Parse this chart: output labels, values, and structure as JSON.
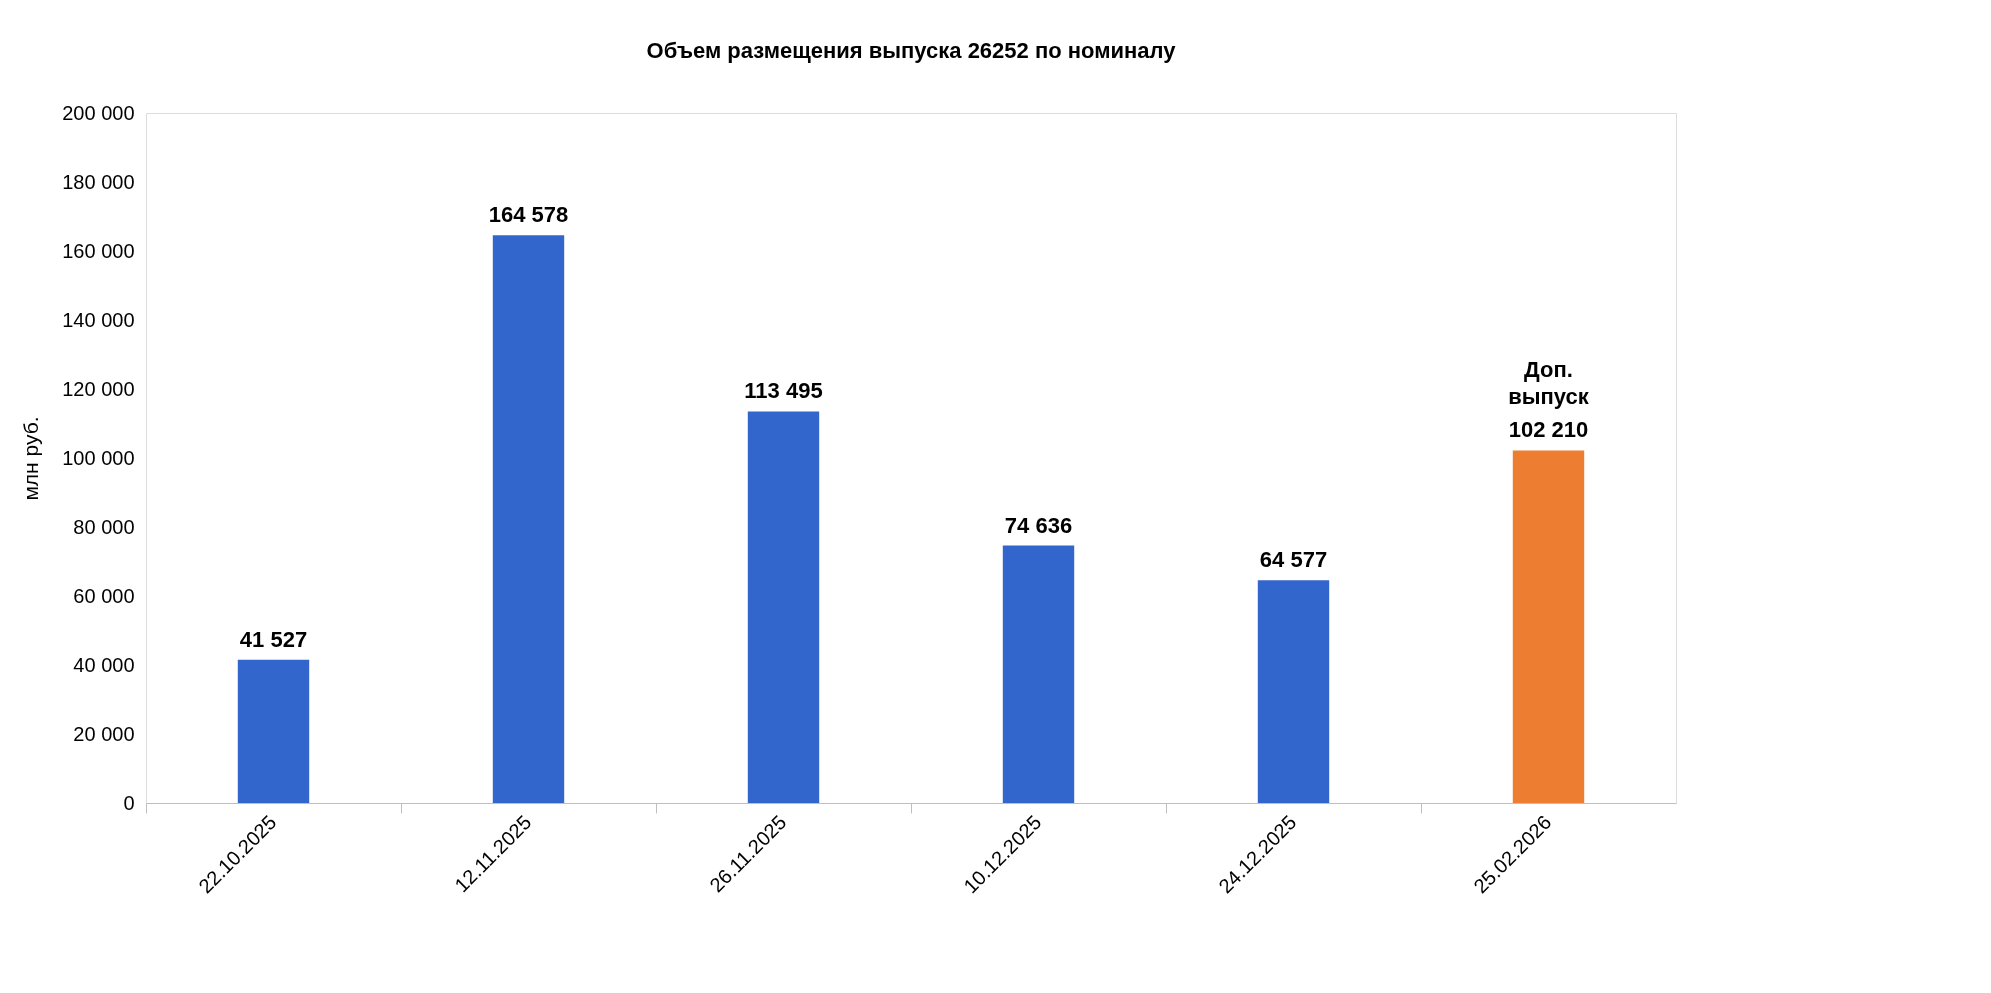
{
  "chart_data": {
    "type": "bar",
    "title": "Объем размещения выпуска 26252 по номиналу",
    "ylabel": "млн руб.",
    "categories": [
      "22.10.2025",
      "12.11.2025",
      "26.11.2025",
      "10.12.2025",
      "24.12.2025",
      "25.02.2026"
    ],
    "values": [
      41527,
      164578,
      113495,
      74636,
      64577,
      102210
    ],
    "colors": [
      "#3366cc",
      "#3366cc",
      "#3366cc",
      "#3366cc",
      "#3366cc",
      "#ed7d31"
    ],
    "value_labels": [
      "41 527",
      "164 578",
      "113 495",
      "74 636",
      "64 577",
      "102 210"
    ],
    "annotations": [
      {
        "text": "Доп. выпуск",
        "x": "25.02.2026",
        "y": 102210
      }
    ],
    "ylim": [
      0,
      200000
    ],
    "yticks": [
      {
        "value": 0,
        "label": "0"
      },
      {
        "value": 20000,
        "label": "20 000"
      },
      {
        "value": 40000,
        "label": "40 000"
      },
      {
        "value": 60000,
        "label": "60 000"
      },
      {
        "value": 80000,
        "label": "80 000"
      },
      {
        "value": 100000,
        "label": "100 000"
      },
      {
        "value": 120000,
        "label": "120 000"
      },
      {
        "value": 140000,
        "label": "140 000"
      },
      {
        "value": 160000,
        "label": "160 000"
      },
      {
        "value": 180000,
        "label": "180 000"
      },
      {
        "value": 200000,
        "label": "200 000"
      }
    ],
    "grid": false
  }
}
